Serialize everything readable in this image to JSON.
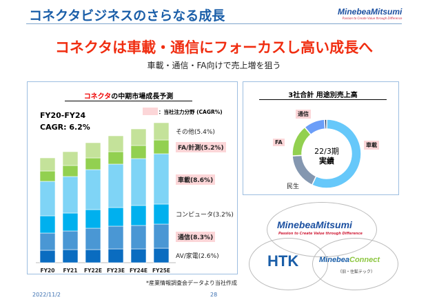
{
  "header": {
    "title": "コネクタビジネスのさらなる成長",
    "logo_name": "MinebeaMitsumi",
    "logo_tagline": "Passion to Create Value through Difference"
  },
  "headline": "コネクタは車載・通信にフォーカスし高い成長へ",
  "subheadline": "車載・通信・FA向けで売上増を狙う",
  "chart_data": [
    {
      "type": "bar",
      "stacked": true,
      "title_highlight": "コネクタ",
      "title_rest": "の中期市場成長予測",
      "period": "FY20-FY24",
      "cagr": "CAGR: 6.2%",
      "legend_note": "：当社注力分野 (CAGR%)",
      "categories": [
        "FY20",
        "FY21",
        "FY22E",
        "FY23E",
        "FY24E",
        "FY25E"
      ],
      "series": [
        {
          "name": "AV/家電(2.6%)",
          "focus": false,
          "color": "#0a6cc0",
          "values": [
            18,
            19,
            19,
            20,
            20,
            21
          ]
        },
        {
          "name": "通信(8.3%)",
          "focus": true,
          "color": "#4a97d4",
          "values": [
            25,
            27,
            31,
            33,
            34,
            35
          ]
        },
        {
          "name": "コンピュータ(3.2%)",
          "focus": false,
          "color": "#00b0ee",
          "values": [
            25,
            26,
            27,
            27,
            29,
            29
          ]
        },
        {
          "name": "車載(8.6%)",
          "focus": true,
          "color": "#7fd4f6",
          "values": [
            50,
            53,
            58,
            63,
            68,
            73
          ]
        },
        {
          "name": "FA/計測(5.2%)",
          "focus": true,
          "color": "#92d050",
          "values": [
            15,
            16,
            17,
            18,
            19,
            20
          ]
        },
        {
          "name": "その他(5.4%)",
          "focus": false,
          "color": "#c4e29a",
          "values": [
            19,
            20,
            22,
            23,
            24,
            25
          ]
        }
      ],
      "source_note": "*産業情報調査会データより当社作成"
    },
    {
      "type": "pie",
      "donut": true,
      "title": "3社合計 用途別売上高",
      "center_label_1": "22/3期",
      "center_label_2": "実績",
      "slices": [
        {
          "name": "車載",
          "value": 57,
          "color": "#66c8fa",
          "focus": true
        },
        {
          "name": "民生",
          "value": 17,
          "color": "#8497b0",
          "focus": false
        },
        {
          "name": "FA",
          "value": 15,
          "color": "#92d050",
          "focus": true
        },
        {
          "name": "通信",
          "value": 10,
          "color": "#6b9ef8",
          "focus": true
        },
        {
          "name": "",
          "value": 1,
          "color": "#203864",
          "focus": false
        }
      ]
    }
  ],
  "companies": {
    "a": "MinebeaMitsumi",
    "a_tag": "Passion to Create Value through Difference",
    "b": "HTK",
    "c1": "Minebea",
    "c2": "Connect",
    "c_note": "（旧・住鉱テック）"
  },
  "footer": {
    "date": "2022/11/2",
    "page": "28"
  }
}
